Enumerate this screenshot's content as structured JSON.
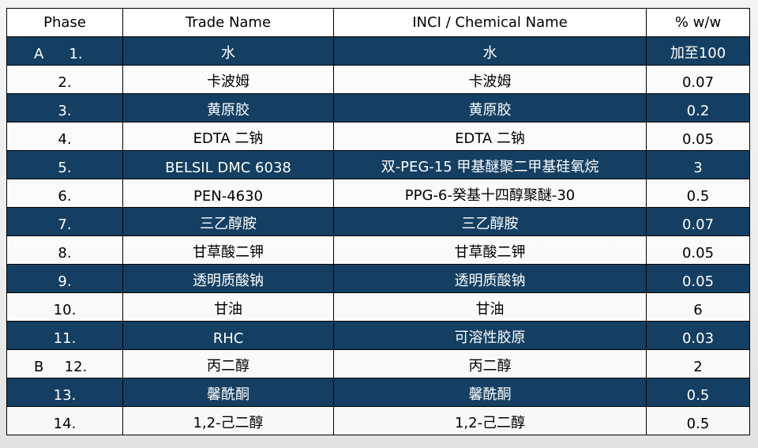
{
  "headers": [
    "Phase",
    "Trade Name",
    "INCI / Chemical Name",
    "% w/w"
  ],
  "colors": {
    "dark_row": "#143f62",
    "light_row": "#ffffff"
  },
  "rows": [
    {
      "phase": "A",
      "no": "1.",
      "trade": "水",
      "inci": "水",
      "pct": "加至100"
    },
    {
      "phase": "",
      "no": "2.",
      "trade": "卡波姆",
      "inci": "卡波姆",
      "pct": "0.07"
    },
    {
      "phase": "",
      "no": "3.",
      "trade": "黄原胶",
      "inci": "黄原胶",
      "pct": "0.2"
    },
    {
      "phase": "",
      "no": "4.",
      "trade": "EDTA 二钠",
      "inci": "EDTA 二钠",
      "pct": "0.05"
    },
    {
      "phase": "",
      "no": "5.",
      "trade": "BELSIL DMC 6038",
      "inci": "双-PEG-15 甲基醚聚二甲基硅氧烷",
      "pct": "3"
    },
    {
      "phase": "",
      "no": "6.",
      "trade": "PEN-4630",
      "inci": "PPG-6-癸基十四醇聚醚-30",
      "pct": "0.5"
    },
    {
      "phase": "",
      "no": "7.",
      "trade": "三乙醇胺",
      "inci": "三乙醇胺",
      "pct": "0.07"
    },
    {
      "phase": "",
      "no": "8.",
      "trade": "甘草酸二钾",
      "inci": "甘草酸二钾",
      "pct": "0.05"
    },
    {
      "phase": "",
      "no": "9.",
      "trade": "透明质酸钠",
      "inci": "透明质酸钠",
      "pct": "0.05"
    },
    {
      "phase": "",
      "no": "10.",
      "trade": "甘油",
      "inci": "甘油",
      "pct": "6"
    },
    {
      "phase": "",
      "no": "11.",
      "trade": "RHC",
      "inci": "可溶性胶原",
      "pct": "0.03"
    },
    {
      "phase": "B",
      "no": "12.",
      "trade": "丙二醇",
      "inci": "丙二醇",
      "pct": "2"
    },
    {
      "phase": "",
      "no": "13.",
      "trade": "馨酰酮",
      "inci": "馨酰酮",
      "pct": "0.5"
    },
    {
      "phase": "",
      "no": "14.",
      "trade": "1,2-己二醇",
      "inci": "1,2-己二醇",
      "pct": "0.5"
    }
  ]
}
